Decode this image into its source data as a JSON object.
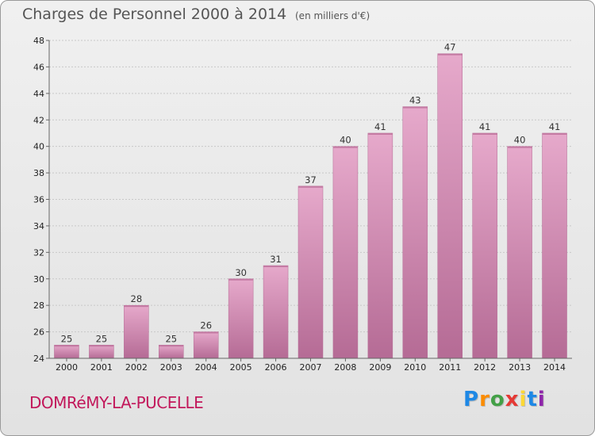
{
  "header": {
    "title": "Charges de Personnel 2000 à 2014",
    "subtitle": "(en milliers d'€)"
  },
  "footer": {
    "commune": "DOMRéMY-LA-PUCELLE",
    "logo": {
      "letters": [
        "P",
        "r",
        "o",
        "x",
        "i",
        "t",
        "i"
      ],
      "colors": [
        "#1e88e5",
        "#fb8c00",
        "#43a047",
        "#e53935",
        "#fdd835",
        "#1e88e5",
        "#8e24aa"
      ]
    }
  },
  "colors": {
    "bar": "#d98cb5",
    "bar_light": "#e6a9cb",
    "bar_dark": "#b56b95",
    "grid": "#c8c8c8"
  },
  "chart_data": {
    "type": "bar",
    "title": "Charges de Personnel 2000 à 2014",
    "subtitle": "(en milliers d'€)",
    "categories": [
      "2000",
      "2001",
      "2002",
      "2003",
      "2004",
      "2005",
      "2006",
      "2007",
      "2008",
      "2009",
      "2010",
      "2011",
      "2012",
      "2013",
      "2014"
    ],
    "values": [
      25,
      25,
      28,
      25,
      26,
      30,
      31,
      37,
      40,
      41,
      43,
      47,
      41,
      40,
      41
    ],
    "ylim": [
      24,
      48
    ],
    "yticks": [
      24,
      26,
      28,
      30,
      32,
      34,
      36,
      38,
      40,
      42,
      44,
      46,
      48
    ],
    "grid": true,
    "xlabel": "",
    "ylabel": ""
  }
}
